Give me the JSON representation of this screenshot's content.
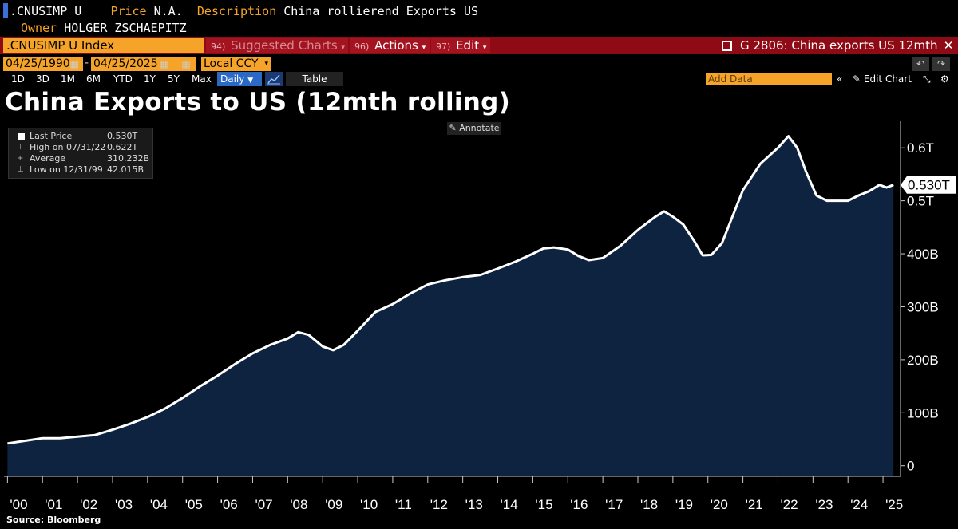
{
  "header": {
    "ticker": ".CNUSIMP U",
    "price_label": "Price",
    "price_value": "N.A.",
    "description_label": "Description",
    "description_value": "China rollierend Exports US",
    "owner_label": "Owner",
    "owner_value": "HOLGER ZSCHAEPITZ"
  },
  "toolbar": {
    "ticker_index": ".CNUSIMP U Index",
    "suggested_num": "94)",
    "suggested_label": "Suggested Charts",
    "actions_num": "96)",
    "actions_label": "Actions",
    "edit_num": "97)",
    "edit_label": "Edit",
    "graph_title": "G 2806: China exports US 12mth"
  },
  "date_row": {
    "start_date": "04/25/1990",
    "end_date": "04/25/2025",
    "currency": "Local CCY"
  },
  "range_buttons": [
    "1D",
    "3D",
    "1M",
    "6M",
    "YTD",
    "1Y",
    "5Y",
    "Max"
  ],
  "frequency": "Daily",
  "table_label": "Table",
  "add_data_placeholder": "Add Data",
  "edit_chart_label": "Edit Chart",
  "annotate_label": "Annotate",
  "source": "Source: Bloomberg",
  "legend": {
    "last_price_label": "Last Price",
    "last_price_value": "0.530T",
    "high_label": "High on 07/31/22",
    "high_value": "0.622T",
    "average_label": "Average",
    "average_value": "310.232B",
    "low_label": "Low on 12/31/99",
    "low_value": "42.015B"
  },
  "last_value_tag": "0.530T",
  "colors": {
    "line": "#ffffff",
    "area_fill": "#0d2340",
    "accent_orange": "#f6a429",
    "toolbar_red": "#8e0a14",
    "daily_blue": "#2a6ac6"
  },
  "chart_data": {
    "type": "area",
    "title": "China Exports to US (12mth rolling)",
    "xlabel": "",
    "ylabel": "",
    "ylim": [
      -20,
      650
    ],
    "xlim": [
      1999.9,
      2025.5
    ],
    "yticks": [
      0,
      100,
      200,
      300,
      400,
      500,
      600
    ],
    "ytick_labels": [
      "0",
      "100B",
      "200B",
      "300B",
      "400B",
      "0.5T",
      "0.6T"
    ],
    "xtick_labels": [
      "'00",
      "'01",
      "'02",
      "'03",
      "'04",
      "'05",
      "'06",
      "'07",
      "'08",
      "'09",
      "'10",
      "'11",
      "'12",
      "'13",
      "'14",
      "'15",
      "'16",
      "'17",
      "'18",
      "'19",
      "'20",
      "'21",
      "'22",
      "'23",
      "'24",
      "'25"
    ],
    "grid": false,
    "series": [
      {
        "units": "USD billions",
        "x": [
          2000.0,
          2000.5,
          2001.0,
          2001.5,
          2002.0,
          2002.5,
          2003.0,
          2003.5,
          2004.0,
          2004.5,
          2005.0,
          2005.5,
          2006.0,
          2006.5,
          2007.0,
          2007.5,
          2008.0,
          2008.3,
          2008.6,
          2009.0,
          2009.3,
          2009.6,
          2010.0,
          2010.5,
          2011.0,
          2011.5,
          2012.0,
          2012.5,
          2013.0,
          2013.5,
          2014.0,
          2014.5,
          2015.0,
          2015.3,
          2015.6,
          2016.0,
          2016.3,
          2016.6,
          2017.0,
          2017.5,
          2018.0,
          2018.5,
          2018.75,
          2019.0,
          2019.3,
          2019.6,
          2019.85,
          2020.1,
          2020.4,
          2020.7,
          2021.0,
          2021.5,
          2022.0,
          2022.3,
          2022.55,
          2022.8,
          2023.1,
          2023.4,
          2023.7,
          2024.0,
          2024.3,
          2024.6,
          2024.9,
          2025.1,
          2025.3
        ],
        "values": [
          42,
          47,
          52,
          52,
          55,
          58,
          68,
          79,
          92,
          108,
          128,
          150,
          170,
          192,
          212,
          228,
          240,
          252,
          247,
          225,
          218,
          228,
          255,
          290,
          305,
          325,
          342,
          350,
          356,
          360,
          372,
          385,
          400,
          410,
          412,
          408,
          396,
          388,
          392,
          415,
          445,
          470,
          480,
          470,
          455,
          425,
          397,
          398,
          420,
          470,
          520,
          570,
          600,
          622,
          600,
          555,
          510,
          500,
          500,
          500,
          510,
          518,
          530,
          525,
          530
        ]
      }
    ]
  }
}
